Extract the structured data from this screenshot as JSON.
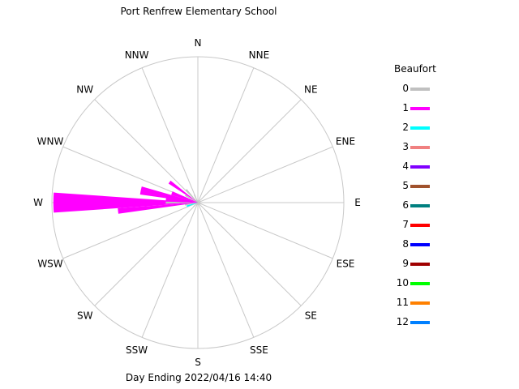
{
  "chart_data": {
    "type": "windrose",
    "title": "Port Renfrew Elementary School",
    "footer": "Day Ending 2022/04/16 14:40",
    "directions": [
      "N",
      "NNE",
      "NE",
      "ENE",
      "E",
      "ESE",
      "SE",
      "SSE",
      "S",
      "SSW",
      "SW",
      "WSW",
      "W",
      "WNW",
      "NW",
      "NNW"
    ],
    "legend": {
      "title": "Beaufort",
      "entries": [
        {
          "label": "0",
          "color": "#c0c0c0"
        },
        {
          "label": "1",
          "color": "#ff00ff"
        },
        {
          "label": "2",
          "color": "#00ffff"
        },
        {
          "label": "3",
          "color": "#f08080"
        },
        {
          "label": "4",
          "color": "#8000ff"
        },
        {
          "label": "5",
          "color": "#a0522d"
        },
        {
          "label": "6",
          "color": "#008080"
        },
        {
          "label": "7",
          "color": "#ff0000"
        },
        {
          "label": "8",
          "color": "#0000ff"
        },
        {
          "label": "9",
          "color": "#a00000"
        },
        {
          "label": "10",
          "color": "#00ff00"
        },
        {
          "label": "11",
          "color": "#ff8000"
        },
        {
          "label": "12",
          "color": "#0080ff"
        }
      ]
    },
    "max_radius_value": 1.0,
    "wedges": [
      {
        "dir_deg": 270,
        "half_width_deg": 4,
        "beaufort": 1,
        "value": 0.99
      },
      {
        "dir_deg": 270,
        "half_width_deg": 2,
        "beaufort": 0,
        "value": 0.22
      },
      {
        "dir_deg": 264,
        "half_width_deg": 2,
        "beaufort": 1,
        "value": 0.55
      },
      {
        "dir_deg": 282,
        "half_width_deg": 4,
        "beaufort": 1,
        "value": 0.4
      },
      {
        "dir_deg": 276,
        "half_width_deg": 4,
        "beaufort": 1,
        "value": 0.22
      },
      {
        "dir_deg": 290,
        "half_width_deg": 4,
        "beaufort": 1,
        "value": 0.19
      },
      {
        "dir_deg": 306,
        "half_width_deg": 3,
        "beaufort": 1,
        "value": 0.24
      },
      {
        "dir_deg": 318,
        "half_width_deg": 3,
        "beaufort": 0,
        "value": 0.12
      },
      {
        "dir_deg": 300,
        "half_width_deg": 3,
        "beaufort": 0,
        "value": 0.1
      },
      {
        "dir_deg": 260,
        "half_width_deg": 3,
        "beaufort": 0,
        "value": 0.09
      },
      {
        "dir_deg": 252,
        "half_width_deg": 4,
        "beaufort": 2,
        "value": 0.08
      },
      {
        "dir_deg": 335,
        "half_width_deg": 3,
        "beaufort": 0,
        "value": 0.06
      },
      {
        "dir_deg": 110,
        "half_width_deg": 3,
        "beaufort": 0,
        "value": 0.03
      },
      {
        "dir_deg": 230,
        "half_width_deg": 3,
        "beaufort": 0,
        "value": 0.04
      }
    ]
  }
}
